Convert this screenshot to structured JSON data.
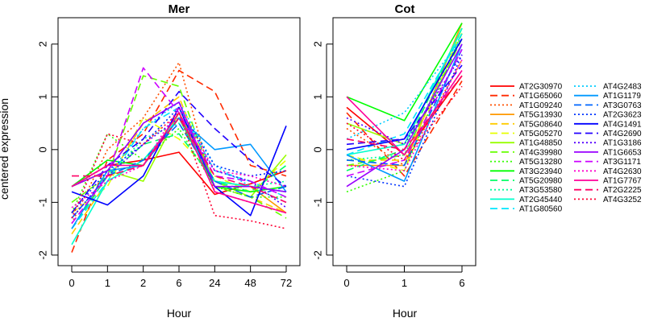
{
  "figure": {
    "ylabel": "centered expression",
    "xlabel": "Hour"
  },
  "chart_data": [
    {
      "type": "line",
      "title": "Mer",
      "xlabel": "Hour",
      "ylabel": "centered expression",
      "categories": [
        "0",
        "1",
        "2",
        "6",
        "24",
        "48",
        "72"
      ],
      "ylim": [
        -2.2,
        2.5
      ],
      "yticks": [
        -2,
        -1,
        0,
        1,
        2
      ],
      "series": [
        {
          "name": "AT2G30970",
          "color": "#FF0000",
          "dash": "solid",
          "values": [
            -0.7,
            -0.3,
            -0.2,
            -0.05,
            -0.85,
            -0.65,
            -0.4
          ]
        },
        {
          "name": "AT1G65060",
          "color": "#FF2A00",
          "dash": "dashed",
          "values": [
            -1.95,
            -0.2,
            0.3,
            1.5,
            1.1,
            -0.3,
            -0.5
          ]
        },
        {
          "name": "AT1G09240",
          "color": "#FF5000",
          "dash": "dotted",
          "values": [
            -1.4,
            0.0,
            0.6,
            1.65,
            -0.8,
            -1.0,
            -1.2
          ]
        },
        {
          "name": "AT5G13930",
          "color": "#FF9900",
          "dash": "solid",
          "values": [
            -0.7,
            -0.4,
            -0.3,
            0.7,
            -0.6,
            -0.7,
            -1.2
          ]
        },
        {
          "name": "AT5G08640",
          "color": "#FFCC00",
          "dash": "dashed",
          "values": [
            -1.6,
            -0.6,
            0.5,
            1.0,
            -0.7,
            -0.9,
            -1.2
          ]
        },
        {
          "name": "AT5G05270",
          "color": "#E6FF00",
          "dash": "dashed",
          "values": [
            -1.2,
            -0.7,
            0.6,
            0.2,
            -0.5,
            -0.8,
            -0.2
          ]
        },
        {
          "name": "AT1G48850",
          "color": "#99FF00",
          "dash": "solid",
          "values": [
            -0.7,
            -0.4,
            -0.6,
            0.7,
            -0.6,
            -0.9,
            -0.1
          ]
        },
        {
          "name": "AT4G39980",
          "color": "#66FF00",
          "dash": "dashed",
          "values": [
            -1.0,
            -0.5,
            1.4,
            1.2,
            -0.7,
            -0.9,
            -1.3
          ]
        },
        {
          "name": "AT5G13280",
          "color": "#33FF00",
          "dash": "dotted",
          "values": [
            -1.2,
            0.3,
            -0.2,
            0.4,
            -0.7,
            -0.9,
            -0.9
          ]
        },
        {
          "name": "AT3G23940",
          "color": "#00FF00",
          "dash": "solid",
          "values": [
            -0.7,
            -0.2,
            -0.3,
            0.6,
            -0.7,
            -0.8,
            -0.7
          ]
        },
        {
          "name": "AT5G20980",
          "color": "#00FF66",
          "dash": "dashed",
          "values": [
            -1.5,
            -0.5,
            0.1,
            0.3,
            -0.6,
            -0.8,
            -0.3
          ]
        },
        {
          "name": "AT3G53580",
          "color": "#00FF99",
          "dash": "dotted",
          "values": [
            -1.3,
            -0.5,
            0.2,
            0.5,
            -0.6,
            -0.7,
            -0.6
          ]
        },
        {
          "name": "AT2G45440",
          "color": "#00FFCC",
          "dash": "solid",
          "values": [
            -1.8,
            -0.6,
            -0.2,
            0.6,
            -0.6,
            -0.7,
            -0.8
          ]
        },
        {
          "name": "AT1G80560",
          "color": "#00E6FF",
          "dash": "dashed",
          "values": [
            -1.5,
            -0.6,
            0.4,
            0.8,
            -0.4,
            -0.6,
            -0.9
          ]
        },
        {
          "name": "AT4G2483",
          "color": "#00CCFF",
          "dash": "dotted",
          "values": [
            -1.3,
            -0.5,
            0.4,
            0.9,
            -0.3,
            -0.7,
            -1.0
          ]
        },
        {
          "name": "AT1G1179",
          "color": "#0099FF",
          "dash": "solid",
          "values": [
            -1.5,
            -0.4,
            -0.3,
            0.6,
            0.0,
            0.1,
            -0.8
          ]
        },
        {
          "name": "AT3G0763",
          "color": "#0066FF",
          "dash": "dashed",
          "values": [
            -1.3,
            -0.5,
            -0.2,
            0.5,
            -0.6,
            -0.9,
            -0.7
          ]
        },
        {
          "name": "AT2G3623",
          "color": "#0033FF",
          "dash": "dotted",
          "values": [
            -1.2,
            -0.4,
            0.1,
            0.8,
            -0.3,
            -0.5,
            -0.4
          ]
        },
        {
          "name": "AT4G1491",
          "color": "#0000FF",
          "dash": "solid",
          "values": [
            -0.8,
            -1.05,
            -0.5,
            0.8,
            -0.7,
            -1.25,
            0.45
          ]
        },
        {
          "name": "AT4G2690",
          "color": "#2200FF",
          "dash": "dashed",
          "values": [
            -1.2,
            -0.3,
            0.2,
            1.1,
            0.4,
            -0.2,
            -0.7
          ]
        },
        {
          "name": "AT1G3186",
          "color": "#5500FF",
          "dash": "dotted",
          "values": [
            -1.3,
            -0.5,
            0.1,
            0.6,
            -0.4,
            -0.6,
            -1.1
          ]
        },
        {
          "name": "AT1G6653",
          "color": "#9900FF",
          "dash": "solid",
          "values": [
            -0.7,
            -0.4,
            0.5,
            0.9,
            -0.7,
            -0.7,
            -0.8
          ]
        },
        {
          "name": "AT3G1171",
          "color": "#CC00FF",
          "dash": "dashed",
          "values": [
            -1.4,
            -0.5,
            1.55,
            0.7,
            -0.5,
            -0.6,
            -0.9
          ]
        },
        {
          "name": "AT4G2630",
          "color": "#FF00CC",
          "dash": "dotted",
          "values": [
            -1.1,
            -0.6,
            -0.3,
            0.8,
            -0.4,
            -0.5,
            -0.7
          ]
        },
        {
          "name": "AT1G7767",
          "color": "#FF0099",
          "dash": "solid",
          "values": [
            -0.7,
            -0.3,
            -0.3,
            0.7,
            -0.8,
            -1.0,
            -1.2
          ]
        },
        {
          "name": "AT2G2225",
          "color": "#FF0066",
          "dash": "dashed",
          "values": [
            -0.5,
            -0.5,
            -0.3,
            0.6,
            -0.5,
            -0.7,
            -1.0
          ]
        },
        {
          "name": "AT4G3252",
          "color": "#FF0033",
          "dash": "dotted",
          "values": [
            -1.3,
            0.3,
            0.1,
            0.7,
            -1.25,
            -1.35,
            -1.5
          ]
        }
      ]
    },
    {
      "type": "line",
      "title": "Cot",
      "xlabel": "Hour",
      "ylabel": "",
      "categories": [
        "0",
        "1",
        "6"
      ],
      "ylim": [
        -2.2,
        2.5
      ],
      "yticks": [
        -2,
        -1,
        0,
        1,
        2
      ],
      "series": [
        {
          "name": "AT2G30970",
          "color": "#FF0000",
          "dash": "solid",
          "values": [
            0.8,
            -0.1,
            1.4
          ]
        },
        {
          "name": "AT1G65060",
          "color": "#FF2A00",
          "dash": "dashed",
          "values": [
            0.7,
            -0.5,
            1.3
          ]
        },
        {
          "name": "AT1G09240",
          "color": "#FF5000",
          "dash": "dotted",
          "values": [
            0.4,
            -0.3,
            1.7
          ]
        },
        {
          "name": "AT5G13930",
          "color": "#FF9900",
          "dash": "solid",
          "values": [
            -0.3,
            -0.3,
            2.4
          ]
        },
        {
          "name": "AT5G08640",
          "color": "#FFCC00",
          "dash": "dashed",
          "values": [
            -0.2,
            -0.2,
            2.2
          ]
        },
        {
          "name": "AT5G05270",
          "color": "#E6FF00",
          "dash": "dashed",
          "values": [
            -0.1,
            -0.4,
            2.3
          ]
        },
        {
          "name": "AT1G48850",
          "color": "#99FF00",
          "dash": "solid",
          "values": [
            0.5,
            0.1,
            2.3
          ]
        },
        {
          "name": "AT4G39980",
          "color": "#66FF00",
          "dash": "dashed",
          "values": [
            -0.3,
            -0.1,
            2.1
          ]
        },
        {
          "name": "AT5G13280",
          "color": "#33FF00",
          "dash": "dotted",
          "values": [
            -0.8,
            -0.4,
            2.2
          ]
        },
        {
          "name": "AT3G23940",
          "color": "#00FF00",
          "dash": "solid",
          "values": [
            1.0,
            0.55,
            2.4
          ]
        },
        {
          "name": "AT5G20980",
          "color": "#00FF66",
          "dash": "dashed",
          "values": [
            -0.4,
            0.0,
            2.3
          ]
        },
        {
          "name": "AT3G53580",
          "color": "#00FF99",
          "dash": "dotted",
          "values": [
            -0.2,
            -0.1,
            2.2
          ]
        },
        {
          "name": "AT2G45440",
          "color": "#00FFCC",
          "dash": "solid",
          "values": [
            -0.1,
            0.1,
            2.3
          ]
        },
        {
          "name": "AT1G80560",
          "color": "#00E6FF",
          "dash": "dashed",
          "values": [
            -0.1,
            0.3,
            2.2
          ]
        },
        {
          "name": "AT4G2483",
          "color": "#00CCFF",
          "dash": "dotted",
          "values": [
            0.2,
            0.7,
            2.1
          ]
        },
        {
          "name": "AT1G1179",
          "color": "#0099FF",
          "dash": "solid",
          "values": [
            -0.1,
            -0.6,
            2.0
          ]
        },
        {
          "name": "AT3G0763",
          "color": "#0066FF",
          "dash": "dashed",
          "values": [
            -0.2,
            -0.3,
            1.9
          ]
        },
        {
          "name": "AT2G3623",
          "color": "#0033FF",
          "dash": "dotted",
          "values": [
            -0.5,
            -0.7,
            1.8
          ]
        },
        {
          "name": "AT4G1491",
          "color": "#0000FF",
          "dash": "solid",
          "values": [
            0.0,
            0.2,
            2.1
          ]
        },
        {
          "name": "AT4G2690",
          "color": "#2200FF",
          "dash": "dashed",
          "values": [
            0.1,
            0.2,
            1.6
          ]
        },
        {
          "name": "AT1G3186",
          "color": "#5500FF",
          "dash": "dotted",
          "values": [
            0.6,
            0.1,
            1.8
          ]
        },
        {
          "name": "AT1G6653",
          "color": "#9900FF",
          "dash": "solid",
          "values": [
            -0.7,
            0.0,
            2.0
          ]
        },
        {
          "name": "AT3G1171",
          "color": "#CC00FF",
          "dash": "dashed",
          "values": [
            -0.5,
            -0.2,
            1.9
          ]
        },
        {
          "name": "AT4G2630",
          "color": "#FF00CC",
          "dash": "dotted",
          "values": [
            -0.3,
            -0.4,
            1.7
          ]
        },
        {
          "name": "AT1G7767",
          "color": "#FF0099",
          "dash": "solid",
          "values": [
            1.0,
            -0.1,
            1.5
          ]
        },
        {
          "name": "AT2G2225",
          "color": "#FF0066",
          "dash": "dashed",
          "values": [
            0.2,
            0.0,
            1.4
          ]
        },
        {
          "name": "AT4G3252",
          "color": "#FF0033",
          "dash": "dotted",
          "values": [
            0.5,
            -0.2,
            1.2
          ]
        }
      ]
    }
  ]
}
